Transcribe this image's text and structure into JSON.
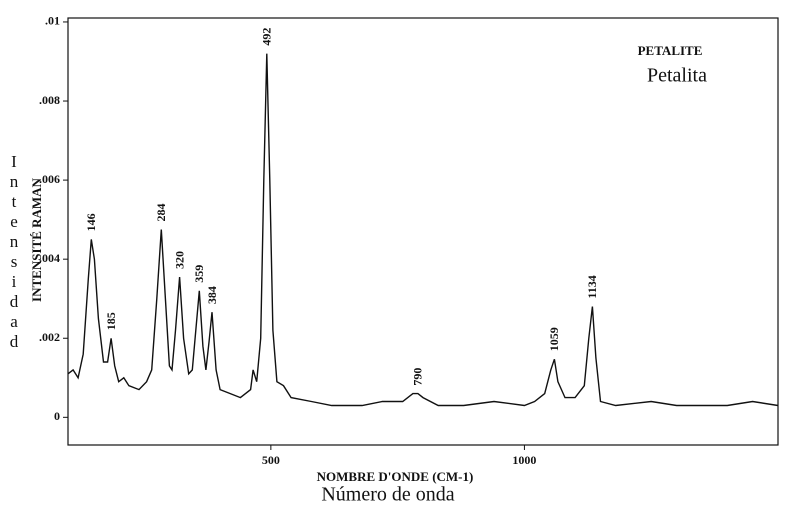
{
  "chart_data": {
    "type": "line",
    "title": "PETALITE",
    "subtitle": "Petalita",
    "x_label": "NOMBRE D'ONDE (CM-1)",
    "x_label_2": "Número de onda",
    "y_label": "INTENSITÉ RAMAN",
    "y_label_2": "Intensidad",
    "color": "#111111",
    "x": [
      100,
      110,
      120,
      130,
      140,
      146,
      152,
      160,
      170,
      178,
      185,
      192,
      200,
      210,
      220,
      240,
      255,
      265,
      275,
      284,
      292,
      300,
      305,
      312,
      320,
      328,
      338,
      345,
      352,
      359,
      366,
      372,
      378,
      384,
      392,
      400,
      420,
      440,
      460,
      465,
      472,
      480,
      486,
      492,
      498,
      504,
      512,
      525,
      540,
      580,
      620,
      680,
      720,
      760,
      780,
      790,
      800,
      830,
      880,
      940,
      1000,
      1020,
      1040,
      1052,
      1059,
      1066,
      1080,
      1100,
      1118,
      1127,
      1134,
      1141,
      1150,
      1180,
      1250,
      1300,
      1400,
      1450,
      1500
    ],
    "values": [
      0.0011,
      0.0012,
      0.001,
      0.0016,
      0.0035,
      0.0045,
      0.004,
      0.0025,
      0.0014,
      0.0014,
      0.002,
      0.0013,
      0.0009,
      0.001,
      0.0008,
      0.0007,
      0.0009,
      0.0012,
      0.003,
      0.00475,
      0.003,
      0.0013,
      0.0012,
      0.0022,
      0.00355,
      0.002,
      0.0011,
      0.0012,
      0.0022,
      0.0032,
      0.0018,
      0.0012,
      0.0019,
      0.00266,
      0.0012,
      0.0007,
      0.0006,
      0.0005,
      0.0007,
      0.0012,
      0.0009,
      0.002,
      0.006,
      0.0092,
      0.006,
      0.0022,
      0.0009,
      0.0008,
      0.0005,
      0.0004,
      0.0003,
      0.0003,
      0.0004,
      0.0004,
      0.0006,
      0.0006,
      0.0005,
      0.0003,
      0.0003,
      0.0004,
      0.0003,
      0.0004,
      0.0006,
      0.0012,
      0.00147,
      0.0009,
      0.0005,
      0.0005,
      0.0008,
      0.002,
      0.0028,
      0.0015,
      0.0004,
      0.0003,
      0.0004,
      0.0003,
      0.0003,
      0.0004,
      0.0003
    ],
    "peaks": [
      146,
      185,
      284,
      320,
      359,
      384,
      492,
      790,
      1059,
      1134
    ],
    "xlim": [
      100,
      1500
    ],
    "xticks": [
      500,
      1000
    ],
    "ylim": [
      -0.0007,
      0.0101
    ],
    "yticks": [
      0,
      {
        "value": 0.002,
        "label": ".002"
      },
      {
        "value": 0.004,
        "label": ".004"
      },
      {
        "value": 0.006,
        "label": ".006"
      },
      {
        "value": 0.008,
        "label": ".008"
      },
      {
        "value": 0.01,
        "label": ".01"
      }
    ]
  }
}
